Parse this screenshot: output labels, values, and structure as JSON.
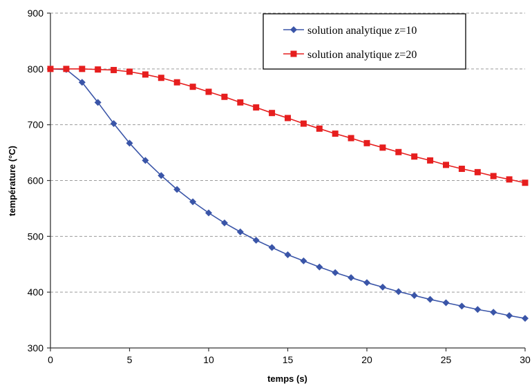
{
  "chart_data": {
    "type": "line",
    "title": "",
    "xlabel": "temps (s)",
    "ylabel": "température (°C)",
    "xlim": [
      0,
      30
    ],
    "ylim": [
      300,
      900
    ],
    "x_ticks": [
      0,
      5,
      10,
      15,
      20,
      25,
      30
    ],
    "y_ticks": [
      300,
      400,
      500,
      600,
      700,
      800,
      900
    ],
    "grid": "horizontal dashed",
    "legend_position": "top-right",
    "series": [
      {
        "name": "solution analytique z=10",
        "color": "#3a55a8",
        "marker": "diamond",
        "x": [
          0,
          1,
          2,
          3,
          4,
          5,
          6,
          7,
          8,
          9,
          10,
          11,
          12,
          13,
          14,
          15,
          16,
          17,
          18,
          19,
          20,
          21,
          22,
          23,
          24,
          25,
          26,
          27,
          28,
          29,
          30
        ],
        "values": [
          800,
          799,
          776,
          740,
          702,
          667,
          636,
          609,
          584,
          562,
          542,
          524,
          508,
          493,
          480,
          467,
          456,
          445,
          435,
          426,
          417,
          409,
          401,
          394,
          387,
          381,
          375,
          369,
          364,
          358,
          353
        ]
      },
      {
        "name": "solution analytique z=20",
        "color": "#e61e1e",
        "marker": "square",
        "x": [
          0,
          1,
          2,
          3,
          4,
          5,
          6,
          7,
          8,
          9,
          10,
          11,
          12,
          13,
          14,
          15,
          16,
          17,
          18,
          19,
          20,
          21,
          22,
          23,
          24,
          25,
          26,
          27,
          28,
          29,
          30
        ],
        "values": [
          800,
          800,
          800,
          799,
          798,
          795,
          790,
          784,
          776,
          768,
          759,
          750,
          740,
          731,
          721,
          712,
          702,
          693,
          684,
          676,
          667,
          659,
          651,
          643,
          636,
          628,
          621,
          615,
          608,
          602,
          596
        ]
      }
    ]
  }
}
